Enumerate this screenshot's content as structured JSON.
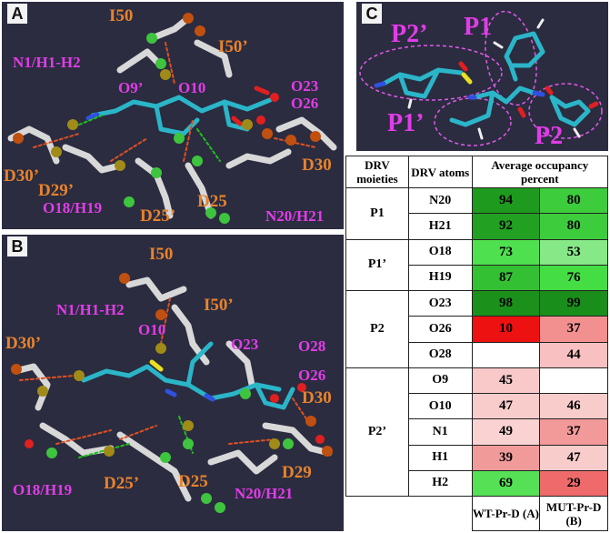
{
  "panels": {
    "a": {
      "tag": "A",
      "labels": {
        "i50": "I50",
        "i50p": "I50’",
        "n1": "N1/H1-H2",
        "o9": "O9’",
        "o10": "O10",
        "o23": "O23",
        "o26": "O26",
        "d30p": "D30’",
        "d29p": "D29’",
        "d30": "D30",
        "o18": "O18/H19",
        "d25p": "D25’",
        "d25": "D25",
        "n20": "N20/H21"
      }
    },
    "b": {
      "tag": "B",
      "labels": {
        "i50": "I50",
        "n1": "N1/H1-H2",
        "i50p": "I50’",
        "o10": "O10",
        "o23": "O23",
        "o28": "O28",
        "d30p": "D30’",
        "o26": "O26",
        "d30": "D30",
        "d29": "D29",
        "o18": "O18/H19",
        "d25p": "D25’",
        "d25": "D25",
        "n20": "N20/H21"
      }
    },
    "c": {
      "tag": "C",
      "labels": {
        "p2p": "P2’",
        "p1": "P1",
        "p1p": "P1’",
        "p2": "P2"
      }
    }
  },
  "table": {
    "headers": {
      "moieties": "DRV moieties",
      "atoms": "DRV atoms",
      "occupancy": "Average occupancy percent"
    },
    "groups": [
      {
        "moiety": "P1",
        "rows": [
          {
            "atom": "N20",
            "wt": "94",
            "mut": "80",
            "wt_color": "#1e9a1e",
            "mut_color": "#3ccc3c"
          },
          {
            "atom": "H21",
            "wt": "92",
            "mut": "80",
            "wt_color": "#22a022",
            "mut_color": "#3ccc3c"
          }
        ]
      },
      {
        "moiety": "P1’",
        "rows": [
          {
            "atom": "O18",
            "wt": "73",
            "mut": "53",
            "wt_color": "#4fe04f",
            "mut_color": "#86e886"
          },
          {
            "atom": "H19",
            "wt": "87",
            "mut": "76",
            "wt_color": "#33c033",
            "mut_color": "#44dd44"
          }
        ]
      },
      {
        "moiety": "P2",
        "rows": [
          {
            "atom": "O23",
            "wt": "98",
            "mut": "99",
            "wt_color": "#1b901b",
            "mut_color": "#1a8e1a"
          },
          {
            "atom": "O26",
            "wt": "10",
            "mut": "37",
            "wt_color": "#ee1111",
            "mut_color": "#f29090"
          },
          {
            "atom": "O28",
            "wt": "",
            "mut": "44",
            "wt_color": "#ffffff",
            "mut_color": "#f8c0c0"
          }
        ]
      },
      {
        "moiety": "P2’",
        "rows": [
          {
            "atom": "O9",
            "wt": "45",
            "mut": "",
            "wt_color": "#f9c8c8",
            "mut_color": "#ffffff"
          },
          {
            "atom": "O10",
            "wt": "47",
            "mut": "46",
            "wt_color": "#f9cccc",
            "mut_color": "#f9cccc"
          },
          {
            "atom": "N1",
            "wt": "49",
            "mut": "37",
            "wt_color": "#fad2d2",
            "mut_color": "#f29a9a"
          },
          {
            "atom": "H1",
            "wt": "39",
            "mut": "47",
            "wt_color": "#f09a9a",
            "mut_color": "#f9cccc"
          },
          {
            "atom": "H2",
            "wt": "69",
            "mut": "29",
            "wt_color": "#55e055",
            "mut_color": "#ef6a6a"
          }
        ]
      }
    ],
    "footer": {
      "wt": "WT-Pr-D (A)",
      "mut": "MUT-Pr-D (B)"
    }
  }
}
